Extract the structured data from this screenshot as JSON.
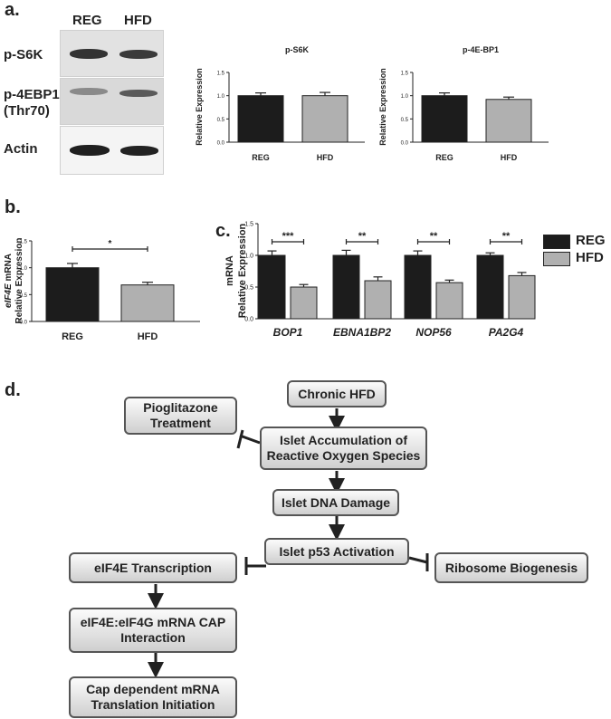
{
  "panels": {
    "a": "a.",
    "b": "b.",
    "c": "c.",
    "d": "d."
  },
  "blot": {
    "columns": [
      "REG",
      "HFD"
    ],
    "rows": [
      {
        "label": "p-S6K"
      },
      {
        "label": "p-4EBP1\n(Thr70)"
      },
      {
        "label": "Actin"
      }
    ]
  },
  "colors": {
    "reg": "#1c1c1c",
    "hfd": "#b0b0b0"
  },
  "legend": {
    "reg": "REG",
    "hfd": "HFD"
  },
  "chart_data": [
    {
      "id": "ps6k",
      "type": "bar",
      "title": "p-S6K",
      "ylabel": "Relative Expression",
      "categories": [
        "REG",
        "HFD"
      ],
      "values": [
        1.0,
        1.0
      ],
      "errors": [
        0.06,
        0.07
      ],
      "ylim": [
        0,
        1.5
      ],
      "yticks": [
        "0.0",
        "0.5",
        "1.0",
        "1.5"
      ]
    },
    {
      "id": "p4ebp1",
      "type": "bar",
      "title": "p-4E-BP1",
      "ylabel": "Relative Expression",
      "categories": [
        "REG",
        "HFD"
      ],
      "values": [
        1.0,
        0.92
      ],
      "errors": [
        0.06,
        0.05
      ],
      "ylim": [
        0,
        1.5
      ],
      "yticks": [
        "0.0",
        "0.5",
        "1.0",
        "1.5"
      ]
    },
    {
      "id": "eif4e",
      "type": "bar",
      "title": "",
      "ylabel": "Relative Expression",
      "ylabel_italic": "eIF4E",
      "ylabel_rest": " mRNA",
      "categories": [
        "REG",
        "HFD"
      ],
      "values": [
        1.0,
        0.68
      ],
      "errors": [
        0.08,
        0.05
      ],
      "ylim": [
        0,
        1.5
      ],
      "yticks": [
        "0.0",
        "0.5",
        "1.0",
        "1.5"
      ],
      "significance": "*"
    },
    {
      "id": "ribo",
      "type": "bar",
      "title": "",
      "ylabel": "Relative Expression",
      "ylabel2": "mRNA",
      "categories": [
        "BOP1",
        "EBNA1BP2",
        "NOP56",
        "PA2G4"
      ],
      "series": [
        {
          "name": "REG",
          "values": [
            1.0,
            1.0,
            1.0,
            1.0
          ],
          "errors": [
            0.07,
            0.08,
            0.07,
            0.04
          ]
        },
        {
          "name": "HFD",
          "values": [
            0.5,
            0.6,
            0.57,
            0.68
          ],
          "errors": [
            0.04,
            0.06,
            0.04,
            0.05
          ]
        }
      ],
      "significance": [
        "***",
        "**",
        "**",
        "**"
      ],
      "ylim": [
        0,
        1.5
      ],
      "yticks": [
        "0.0",
        "0.5",
        "1.0",
        "1.5"
      ]
    }
  ],
  "flow": {
    "chronic_hfd": "Chronic HFD",
    "pioglitazone": "Pioglitazone\nTreatment",
    "ros": "Islet Accumulation of\nReactive Oxygen Species",
    "dna_damage": "Islet DNA Damage",
    "p53": "Islet p53 Activation",
    "eif4e_transcription": "eIF4E Transcription",
    "ribosome": "Ribosome Biogenesis",
    "cap_interaction": "eIF4E:eIF4G mRNA CAP\nInteraction",
    "translation": "Cap dependent mRNA\nTranslation Initiation"
  }
}
